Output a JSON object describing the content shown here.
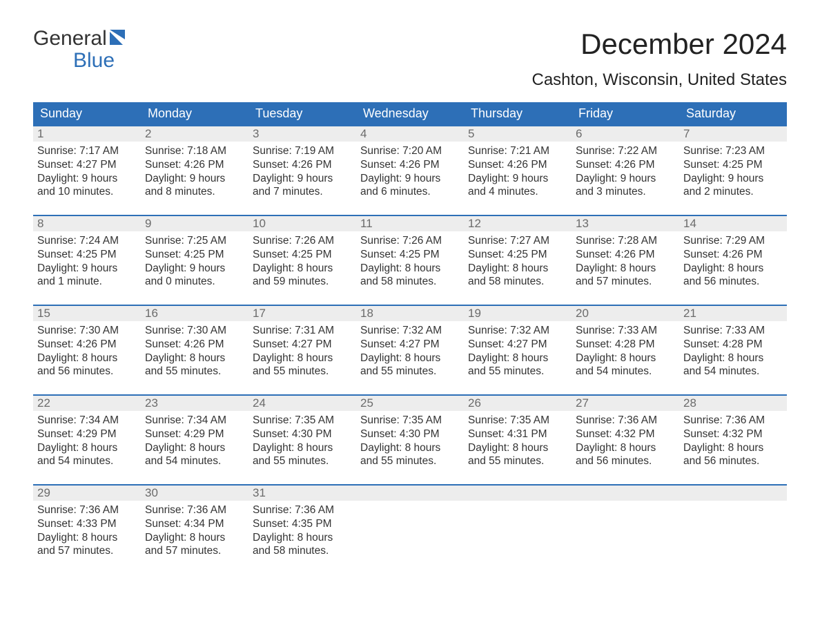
{
  "logo": {
    "word1": "General",
    "word2": "Blue"
  },
  "title": "December 2024",
  "location": "Cashton, Wisconsin, United States",
  "colors": {
    "header_bg": "#2d6fb7",
    "header_text": "#ffffff",
    "daynum_bg": "#ededed",
    "daynum_text": "#6b6b6b",
    "body_text": "#333333",
    "page_bg": "#ffffff",
    "week_border": "#2d6fb7",
    "logo_blue": "#2d6fb7"
  },
  "layout": {
    "columns": 7,
    "rows": 5,
    "font_family": "Arial",
    "title_fontsize": 42,
    "location_fontsize": 24,
    "header_fontsize": 18,
    "daynum_fontsize": 17,
    "body_fontsize": 15.5
  },
  "day_names": [
    "Sunday",
    "Monday",
    "Tuesday",
    "Wednesday",
    "Thursday",
    "Friday",
    "Saturday"
  ],
  "weeks": [
    [
      {
        "num": "1",
        "sunrise": "Sunrise: 7:17 AM",
        "sunset": "Sunset: 4:27 PM",
        "day1": "Daylight: 9 hours",
        "day2": "and 10 minutes."
      },
      {
        "num": "2",
        "sunrise": "Sunrise: 7:18 AM",
        "sunset": "Sunset: 4:26 PM",
        "day1": "Daylight: 9 hours",
        "day2": "and 8 minutes."
      },
      {
        "num": "3",
        "sunrise": "Sunrise: 7:19 AM",
        "sunset": "Sunset: 4:26 PM",
        "day1": "Daylight: 9 hours",
        "day2": "and 7 minutes."
      },
      {
        "num": "4",
        "sunrise": "Sunrise: 7:20 AM",
        "sunset": "Sunset: 4:26 PM",
        "day1": "Daylight: 9 hours",
        "day2": "and 6 minutes."
      },
      {
        "num": "5",
        "sunrise": "Sunrise: 7:21 AM",
        "sunset": "Sunset: 4:26 PM",
        "day1": "Daylight: 9 hours",
        "day2": "and 4 minutes."
      },
      {
        "num": "6",
        "sunrise": "Sunrise: 7:22 AM",
        "sunset": "Sunset: 4:26 PM",
        "day1": "Daylight: 9 hours",
        "day2": "and 3 minutes."
      },
      {
        "num": "7",
        "sunrise": "Sunrise: 7:23 AM",
        "sunset": "Sunset: 4:25 PM",
        "day1": "Daylight: 9 hours",
        "day2": "and 2 minutes."
      }
    ],
    [
      {
        "num": "8",
        "sunrise": "Sunrise: 7:24 AM",
        "sunset": "Sunset: 4:25 PM",
        "day1": "Daylight: 9 hours",
        "day2": "and 1 minute."
      },
      {
        "num": "9",
        "sunrise": "Sunrise: 7:25 AM",
        "sunset": "Sunset: 4:25 PM",
        "day1": "Daylight: 9 hours",
        "day2": "and 0 minutes."
      },
      {
        "num": "10",
        "sunrise": "Sunrise: 7:26 AM",
        "sunset": "Sunset: 4:25 PM",
        "day1": "Daylight: 8 hours",
        "day2": "and 59 minutes."
      },
      {
        "num": "11",
        "sunrise": "Sunrise: 7:26 AM",
        "sunset": "Sunset: 4:25 PM",
        "day1": "Daylight: 8 hours",
        "day2": "and 58 minutes."
      },
      {
        "num": "12",
        "sunrise": "Sunrise: 7:27 AM",
        "sunset": "Sunset: 4:25 PM",
        "day1": "Daylight: 8 hours",
        "day2": "and 58 minutes."
      },
      {
        "num": "13",
        "sunrise": "Sunrise: 7:28 AM",
        "sunset": "Sunset: 4:26 PM",
        "day1": "Daylight: 8 hours",
        "day2": "and 57 minutes."
      },
      {
        "num": "14",
        "sunrise": "Sunrise: 7:29 AM",
        "sunset": "Sunset: 4:26 PM",
        "day1": "Daylight: 8 hours",
        "day2": "and 56 minutes."
      }
    ],
    [
      {
        "num": "15",
        "sunrise": "Sunrise: 7:30 AM",
        "sunset": "Sunset: 4:26 PM",
        "day1": "Daylight: 8 hours",
        "day2": "and 56 minutes."
      },
      {
        "num": "16",
        "sunrise": "Sunrise: 7:30 AM",
        "sunset": "Sunset: 4:26 PM",
        "day1": "Daylight: 8 hours",
        "day2": "and 55 minutes."
      },
      {
        "num": "17",
        "sunrise": "Sunrise: 7:31 AM",
        "sunset": "Sunset: 4:27 PM",
        "day1": "Daylight: 8 hours",
        "day2": "and 55 minutes."
      },
      {
        "num": "18",
        "sunrise": "Sunrise: 7:32 AM",
        "sunset": "Sunset: 4:27 PM",
        "day1": "Daylight: 8 hours",
        "day2": "and 55 minutes."
      },
      {
        "num": "19",
        "sunrise": "Sunrise: 7:32 AM",
        "sunset": "Sunset: 4:27 PM",
        "day1": "Daylight: 8 hours",
        "day2": "and 55 minutes."
      },
      {
        "num": "20",
        "sunrise": "Sunrise: 7:33 AM",
        "sunset": "Sunset: 4:28 PM",
        "day1": "Daylight: 8 hours",
        "day2": "and 54 minutes."
      },
      {
        "num": "21",
        "sunrise": "Sunrise: 7:33 AM",
        "sunset": "Sunset: 4:28 PM",
        "day1": "Daylight: 8 hours",
        "day2": "and 54 minutes."
      }
    ],
    [
      {
        "num": "22",
        "sunrise": "Sunrise: 7:34 AM",
        "sunset": "Sunset: 4:29 PM",
        "day1": "Daylight: 8 hours",
        "day2": "and 54 minutes."
      },
      {
        "num": "23",
        "sunrise": "Sunrise: 7:34 AM",
        "sunset": "Sunset: 4:29 PM",
        "day1": "Daylight: 8 hours",
        "day2": "and 54 minutes."
      },
      {
        "num": "24",
        "sunrise": "Sunrise: 7:35 AM",
        "sunset": "Sunset: 4:30 PM",
        "day1": "Daylight: 8 hours",
        "day2": "and 55 minutes."
      },
      {
        "num": "25",
        "sunrise": "Sunrise: 7:35 AM",
        "sunset": "Sunset: 4:30 PM",
        "day1": "Daylight: 8 hours",
        "day2": "and 55 minutes."
      },
      {
        "num": "26",
        "sunrise": "Sunrise: 7:35 AM",
        "sunset": "Sunset: 4:31 PM",
        "day1": "Daylight: 8 hours",
        "day2": "and 55 minutes."
      },
      {
        "num": "27",
        "sunrise": "Sunrise: 7:36 AM",
        "sunset": "Sunset: 4:32 PM",
        "day1": "Daylight: 8 hours",
        "day2": "and 56 minutes."
      },
      {
        "num": "28",
        "sunrise": "Sunrise: 7:36 AM",
        "sunset": "Sunset: 4:32 PM",
        "day1": "Daylight: 8 hours",
        "day2": "and 56 minutes."
      }
    ],
    [
      {
        "num": "29",
        "sunrise": "Sunrise: 7:36 AM",
        "sunset": "Sunset: 4:33 PM",
        "day1": "Daylight: 8 hours",
        "day2": "and 57 minutes."
      },
      {
        "num": "30",
        "sunrise": "Sunrise: 7:36 AM",
        "sunset": "Sunset: 4:34 PM",
        "day1": "Daylight: 8 hours",
        "day2": "and 57 minutes."
      },
      {
        "num": "31",
        "sunrise": "Sunrise: 7:36 AM",
        "sunset": "Sunset: 4:35 PM",
        "day1": "Daylight: 8 hours",
        "day2": "and 58 minutes."
      },
      {
        "empty": true
      },
      {
        "empty": true
      },
      {
        "empty": true
      },
      {
        "empty": true
      }
    ]
  ]
}
